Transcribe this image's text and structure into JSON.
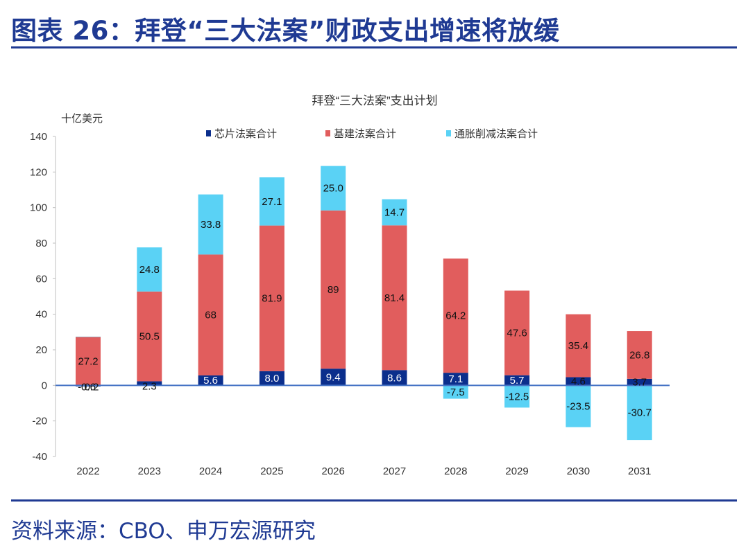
{
  "figure": {
    "title": "图表 26：拜登“三大法案”财政支出增速将放缓",
    "source": "资料来源：CBO、申万宏源研究"
  },
  "colors": {
    "brand": "#1f3a93",
    "chips": "#0b2e8c",
    "infrastructure": "#e15d5d",
    "inflation": "#5ad2f5",
    "axis": "#4472c4"
  },
  "chart_data": {
    "type": "bar",
    "stacked": true,
    "title": "拜登“三大法案”支出计划",
    "ylabel": "十亿美元",
    "xlabel": "",
    "ylim": [
      -40,
      140
    ],
    "yticks": [
      -40,
      -20,
      0,
      20,
      40,
      60,
      80,
      100,
      120,
      140
    ],
    "legend_position": "top",
    "categories": [
      "2022",
      "2023",
      "2024",
      "2025",
      "2026",
      "2027",
      "2028",
      "2029",
      "2030",
      "2031"
    ],
    "series": [
      {
        "name": "芯片法案合计",
        "color": "#0b2e8c",
        "values": [
          -0.6,
          2.3,
          5.6,
          8.0,
          9.4,
          8.6,
          7.1,
          5.7,
          4.6,
          3.7
        ],
        "labels": [
          "-0.6",
          "2.3",
          "5.6",
          "8.0",
          "9.4",
          "8.6",
          "7.1",
          "5.7",
          "4.6",
          "3.7"
        ],
        "label_color": [
          "#111111",
          "#111111",
          "#ffffff",
          "#ffffff",
          "#ffffff",
          "#ffffff",
          "#ffffff",
          "#ffffff",
          "#111111",
          "#111111"
        ]
      },
      {
        "name": "基建法案合计",
        "color": "#e15d5d",
        "values": [
          27.2,
          50.5,
          68,
          81.9,
          89,
          81.4,
          64.2,
          47.6,
          35.4,
          26.8
        ],
        "labels": [
          "27.2",
          "50.5",
          "68",
          "81.9",
          "89",
          "81.4",
          "64.2",
          "47.6",
          "35.4",
          "26.8"
        ]
      },
      {
        "name": "通胀削减法案合计",
        "color": "#5ad2f5",
        "values": [
          0.2,
          24.8,
          33.8,
          27.1,
          25.0,
          14.7,
          -7.5,
          -12.5,
          -23.5,
          -30.7
        ],
        "labels": [
          "0.2",
          "24.8",
          "33.8",
          "27.1",
          "25.0",
          "14.7",
          "-7.5",
          "-12.5",
          "-23.5",
          "-30.7"
        ]
      }
    ]
  }
}
